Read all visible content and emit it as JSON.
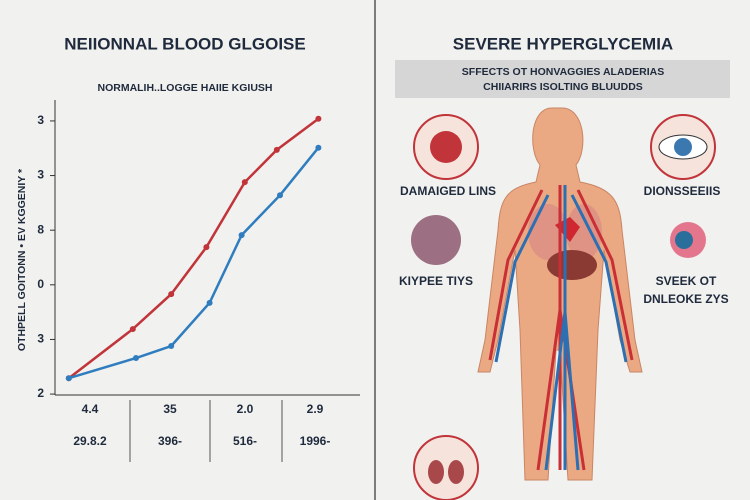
{
  "chart_data": {
    "type": "line",
    "title": "NEIIONNAL BLOOD GLGOISE",
    "subtitle": "NORMALIH..LOGGE HAIIE KGIUSH",
    "y_label": "OTHPELL GOITONN • EV KGGENIY *",
    "x_labels": [
      "4.4",
      "35",
      "2.0",
      "2.9"
    ],
    "x_sublabels": [
      "29.8.2",
      "396-",
      "516-",
      "1996-"
    ],
    "xlim": [
      0,
      100
    ],
    "ylim": [
      -0.2,
      5.2
    ],
    "yticks": [
      {
        "value": 0,
        "label": "2"
      },
      {
        "value": 1,
        "label": "3"
      },
      {
        "value": 2,
        "label": "0"
      },
      {
        "value": 3,
        "label": "8"
      },
      {
        "value": 4,
        "label": "3"
      },
      {
        "value": 5,
        "label": "3"
      }
    ],
    "series": [
      {
        "color": "#c0343a",
        "x": [
          9,
          29,
          41,
          52,
          64,
          74,
          87
        ],
        "values": [
          0.29,
          1.19,
          1.83,
          2.69,
          3.88,
          4.47,
          5.04
        ]
      },
      {
        "color": "#2f7dbf",
        "x": [
          9,
          30,
          41,
          53,
          63,
          75,
          87
        ],
        "values": [
          0.29,
          0.66,
          0.88,
          1.67,
          2.91,
          3.64,
          4.51
        ]
      }
    ]
  },
  "panel": {
    "title": "SEVERE HYPERGLYCEMIA",
    "banner": [
      "SFFECTS OT HONVAGGIES ALADERIAS",
      "CHIIARIRS ISOLTING BLUUDDS"
    ],
    "labels": [
      "DAMAIGED LINS",
      "DIONSSEEIIS",
      "KIYPEE TIYS",
      "SVEEK OT",
      "DNLEOKE ZYS"
    ]
  }
}
